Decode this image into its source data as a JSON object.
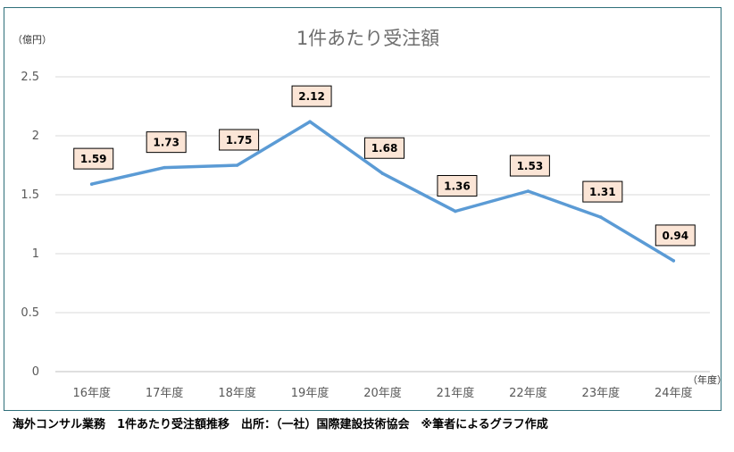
{
  "chart_data": {
    "type": "line",
    "title": "1件あたり受注額",
    "ylabel": "（億円）",
    "xlabel": "（年度）",
    "categories": [
      "16年度",
      "17年度",
      "18年度",
      "19年度",
      "20年度",
      "21年度",
      "22年度",
      "23年度",
      "24年度"
    ],
    "series": [
      {
        "values": [
          1.59,
          1.73,
          1.75,
          2.12,
          1.68,
          1.36,
          1.53,
          1.31,
          0.94
        ],
        "color": "#5b9bd5"
      }
    ],
    "data_labels": [
      "1.59",
      "1.73",
      "1.75",
      "2.12",
      "1.68",
      "1.36",
      "1.53",
      "1.31",
      "0.94"
    ],
    "yticks": [
      "0",
      "0.5",
      "1",
      "1.5",
      "2",
      "2.5"
    ],
    "ylim": [
      0,
      2.5
    ],
    "grid": true,
    "legend": "none",
    "label_fill": "#fbe5d6"
  },
  "caption": "海外コンサル業務　1件あたり受注額推移　出所：（一社）国際建設技術協会　※筆者によるグラフ作成"
}
